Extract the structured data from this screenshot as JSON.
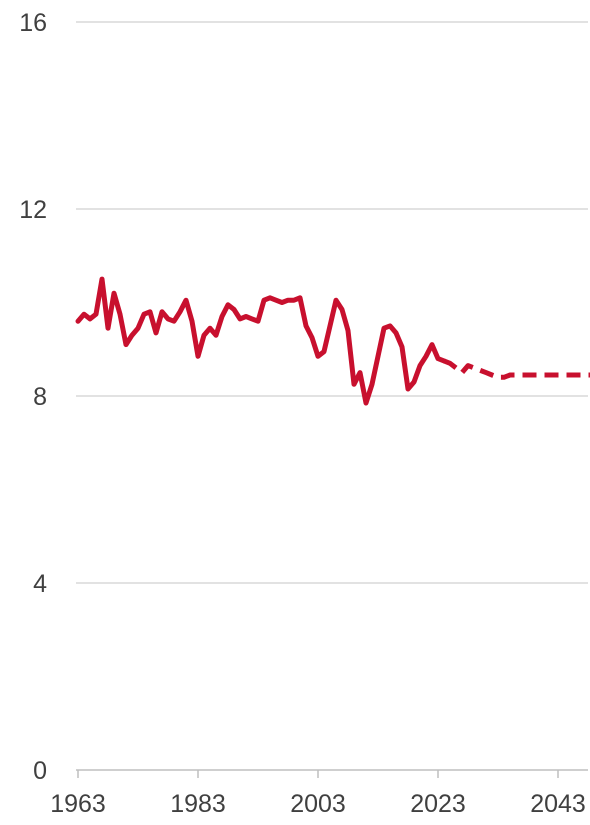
{
  "chart_data": {
    "type": "line",
    "title": "",
    "xlabel": "",
    "ylabel": "",
    "xlim": [
      1963,
      2050
    ],
    "ylim": [
      0,
      16
    ],
    "y_ticks": [
      0,
      4,
      8,
      12,
      16
    ],
    "y_tick_labels": [
      "0",
      "4",
      "8",
      "12",
      "16"
    ],
    "x_ticks": [
      1963,
      1983,
      2003,
      2023,
      2043
    ],
    "x_tick_labels": [
      "1963",
      "1983",
      "2003",
      "2023",
      "2043"
    ],
    "grid": true,
    "legend": "none",
    "colors": {
      "series": "#c8102e",
      "grid": "#d9d9d9",
      "axis": "#bfbfbf",
      "text": "#404040"
    },
    "series": [
      {
        "style": "solid",
        "x": [
          1963,
          1964,
          1965,
          1966,
          1967,
          1968,
          1969,
          1970,
          1971,
          1972,
          1973,
          1974,
          1975,
          1976,
          1977,
          1978,
          1979,
          1980,
          1981,
          1982,
          1983,
          1984,
          1985,
          1986,
          1987,
          1988,
          1989,
          1990,
          1991,
          1992,
          1993,
          1994,
          1995,
          1996,
          1997,
          1998,
          1999,
          2000,
          2001,
          2002,
          2003,
          2004,
          2005,
          2006,
          2007,
          2008,
          2009,
          2010,
          2011,
          2012,
          2013,
          2014,
          2015,
          2016,
          2017,
          2018,
          2019,
          2020,
          2021,
          2022,
          2023,
          2024
        ],
        "y": [
          9.6,
          9.75,
          9.65,
          9.75,
          10.5,
          9.45,
          10.2,
          9.75,
          9.1,
          9.3,
          9.45,
          9.75,
          9.8,
          9.35,
          9.8,
          9.65,
          9.6,
          9.8,
          10.05,
          9.6,
          8.85,
          9.3,
          9.45,
          9.3,
          9.7,
          9.95,
          9.85,
          9.65,
          9.7,
          9.65,
          9.6,
          10.05,
          10.1,
          10.05,
          10.0,
          10.05,
          10.05,
          10.1,
          9.5,
          9.25,
          8.85,
          8.95,
          9.5,
          10.05,
          9.85,
          9.4,
          8.25,
          8.5,
          7.85,
          8.25,
          8.85,
          9.45,
          9.5,
          9.35,
          9.05,
          8.15,
          8.3,
          8.65,
          8.85,
          9.1,
          8.8,
          8.75
        ]
      },
      {
        "style": "dashed",
        "x": [
          2024,
          2025,
          2026,
          2027,
          2028,
          2029,
          2030,
          2031,
          2032,
          2033,
          2034,
          2035,
          2036,
          2037,
          2038,
          2039,
          2040,
          2041,
          2042,
          2043,
          2044,
          2045,
          2046,
          2047,
          2048,
          2049,
          2050
        ],
        "y": [
          8.75,
          8.7,
          8.6,
          8.5,
          8.65,
          8.6,
          8.55,
          8.5,
          8.45,
          8.4,
          8.4,
          8.45,
          8.45,
          8.45,
          8.45,
          8.45,
          8.45,
          8.45,
          8.45,
          8.45,
          8.45,
          8.45,
          8.45,
          8.45,
          8.45,
          8.45,
          8.45
        ]
      }
    ]
  }
}
